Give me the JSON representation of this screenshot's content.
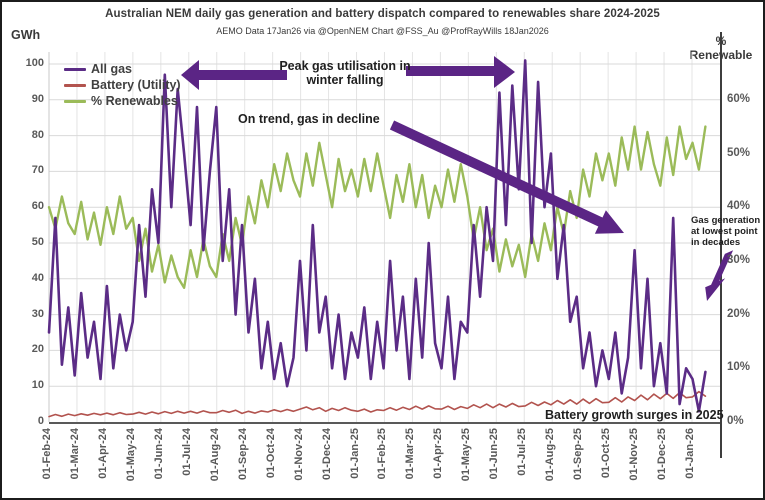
{
  "header": {
    "title": "Australian NEM daily gas generation and battery dispatch compared to renewables share 2024-2025",
    "subtitle": "AEMO Data 17Jan26  via @OpenNEM Chart @FSS_Au @ProfRayWills 18Jan2026"
  },
  "axes": {
    "left_unit": "GWh",
    "right_unit_line1": "%",
    "right_unit_line2": "Renewable",
    "left_ticks": [
      0,
      10,
      20,
      30,
      40,
      50,
      60,
      70,
      80,
      90,
      100
    ],
    "right_ticks": [
      "0%",
      "10%",
      "20%",
      "30%",
      "40%",
      "50%",
      "60%"
    ],
    "x_ticks": [
      "01-Feb-24",
      "01-Mar-24",
      "01-Apr-24",
      "01-May-24",
      "01-Jun-24",
      "01-Jul-24",
      "01-Aug-24",
      "01-Sep-24",
      "01-Oct-24",
      "01-Nov-24",
      "01-Dec-24",
      "01-Jan-25",
      "01-Feb-25",
      "01-Mar-25",
      "01-Apr-25",
      "01-May-25",
      "01-Jun-25",
      "01-Jul-25",
      "01-Aug-25",
      "01-Sep-25",
      "01-Oct-25",
      "01-Nov-25",
      "01-Dec-25",
      "01-Jan-26"
    ]
  },
  "legend": [
    {
      "label": "All gas",
      "color": "#5b2c86"
    },
    {
      "label": "Battery (Utility)",
      "color": "#b2534e"
    },
    {
      "label": "% Renewables",
      "color": "#9bbb59"
    }
  ],
  "annotations": {
    "peak": {
      "line1": "Peak gas utilisation in",
      "line2": "winter falling"
    },
    "trend": "On trend, gas in decline",
    "lowest": {
      "line1": "Gas generation",
      "line2": "at lowest point",
      "line3": "in decades"
    },
    "battery": "Battery  growth surges in 2025"
  },
  "colors": {
    "gas": "#5b2c86",
    "battery": "#b2534e",
    "renewables": "#9bbb59",
    "arrow": "#5b2585",
    "gridline": "#d9d9d9",
    "axis": "#595959"
  },
  "chart_data": {
    "type": "line",
    "title": "Australian NEM daily gas generation and battery dispatch compared to renewables share 2024-2025",
    "x_start": "01-Feb-24",
    "x_end": "mid-Jan-26",
    "sample_interval_days": 7,
    "ylabel_left": "GWh",
    "ylabel_right": "% Renewable",
    "ylim_left_gwh": [
      0,
      100
    ],
    "ylim_right_percent": [
      0,
      66.7
    ],
    "right_axis_scale_note": "10% renewables aligns with 15 GWh on left axis",
    "grid": true,
    "legend_position": "top-left-inside",
    "series": [
      {
        "name": "All gas",
        "axis": "left",
        "unit": "GWh",
        "color": "#5b2c86",
        "values": [
          25,
          57,
          16,
          32,
          13,
          36,
          18,
          28,
          12,
          38,
          15,
          30,
          20,
          28,
          55,
          35,
          65,
          50,
          97,
          60,
          93,
          75,
          55,
          88,
          48,
          70,
          88,
          45,
          65,
          30,
          55,
          25,
          40,
          15,
          28,
          12,
          22,
          10,
          18,
          45,
          20,
          55,
          25,
          35,
          15,
          30,
          12,
          25,
          18,
          32,
          12,
          28,
          15,
          45,
          20,
          35,
          12,
          40,
          18,
          50,
          22,
          15,
          35,
          12,
          28,
          25,
          55,
          35,
          60,
          45,
          92,
          55,
          94,
          65,
          101,
          50,
          95,
          60,
          75,
          40,
          55,
          28,
          35,
          15,
          25,
          10,
          20,
          12,
          25,
          8,
          18,
          48,
          15,
          40,
          10,
          22,
          8,
          57,
          5,
          15,
          12,
          3,
          14
        ]
      },
      {
        "name": "Battery (Utility)",
        "axis": "left",
        "unit": "GWh",
        "color": "#b2534e",
        "values": [
          1.5,
          2.1,
          1.6,
          2.2,
          1.8,
          2.3,
          1.9,
          2.4,
          2.0,
          2.5,
          2.0,
          2.6,
          2.1,
          2.2,
          2.7,
          2.2,
          2.8,
          2.3,
          2.9,
          2.4,
          3.0,
          2.5,
          3.0,
          2.5,
          3.1,
          2.6,
          2.6,
          3.2,
          2.7,
          3.3,
          2.4,
          3.0,
          2.5,
          3.1,
          2.8,
          3.4,
          2.9,
          3.5,
          3.0,
          3.6,
          4.2,
          3.4,
          4.0,
          3.0,
          3.8,
          3.2,
          4.0,
          3.3,
          3.0,
          3.6,
          2.8,
          3.4,
          3.2,
          4.0,
          3.3,
          4.1,
          3.5,
          4.4,
          3.6,
          4.5,
          3.7,
          3.6,
          4.4,
          3.5,
          4.3,
          3.8,
          4.8,
          4.0,
          5.0,
          4.0,
          5.0,
          4.2,
          5.2,
          4.3,
          4.5,
          5.5,
          4.6,
          5.6,
          4.8,
          6.0,
          5.0,
          6.2,
          5.0,
          6.4,
          5.2,
          6.5,
          5.4,
          5.5,
          6.8,
          5.6,
          7.0,
          6.0,
          7.5,
          6.2,
          7.8,
          6.5,
          8.0,
          6.6,
          8.2,
          6.8,
          7.0,
          8.5,
          7.2
        ]
      },
      {
        "name": "% Renewables",
        "axis": "right",
        "unit": "%",
        "color": "#9bbb59",
        "values": [
          40,
          36,
          42,
          37,
          35,
          41,
          34,
          39,
          33,
          40,
          35,
          42,
          36,
          38,
          30,
          36,
          28,
          33,
          26,
          31,
          27,
          25,
          32,
          27,
          34,
          29,
          27,
          35,
          30,
          38,
          33,
          42,
          37,
          45,
          40,
          48,
          43,
          50,
          45,
          42,
          50,
          44,
          52,
          46,
          40,
          49,
          43,
          47,
          42,
          49,
          43,
          50,
          44,
          38,
          46,
          41,
          48,
          40,
          46,
          38,
          44,
          40,
          47,
          41,
          48,
          42,
          34,
          40,
          32,
          36,
          28,
          34,
          29,
          33,
          27,
          35,
          30,
          37,
          32,
          40,
          35,
          43,
          38,
          47,
          42,
          50,
          45,
          50,
          44,
          53,
          47,
          55,
          47,
          54,
          48,
          44,
          53,
          46,
          55,
          49,
          52,
          47,
          55
        ]
      }
    ]
  }
}
